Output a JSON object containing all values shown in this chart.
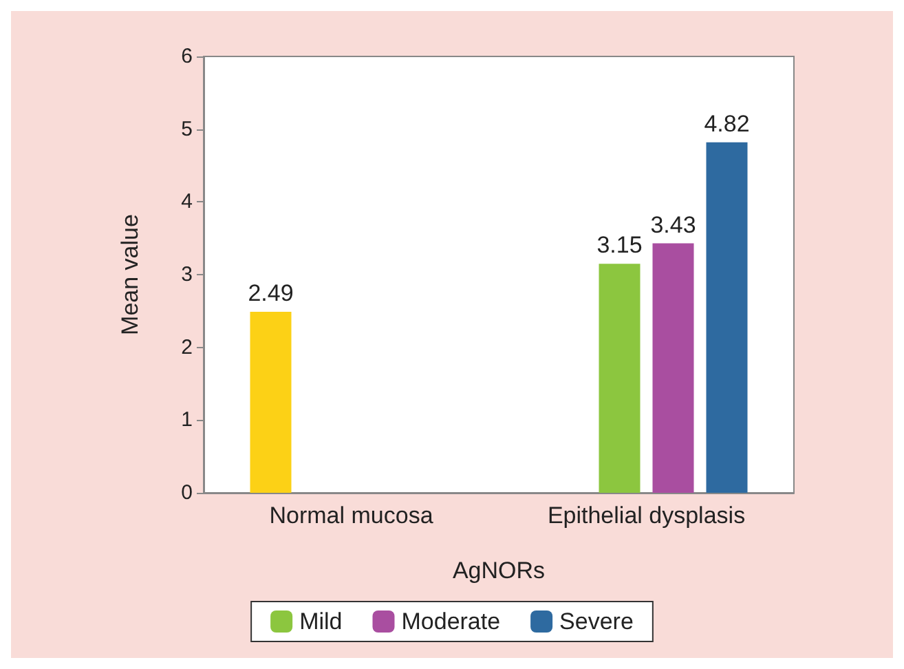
{
  "chart_data": {
    "type": "bar",
    "xlabel": "AgNORs",
    "ylabel": "Mean value",
    "categories": [
      "Normal mucosa",
      "Epithelial dysplasis"
    ],
    "series": [
      {
        "color": "#fcd116",
        "values": [
          2.49,
          null
        ]
      },
      {
        "name": "Mild",
        "color": "#8cc63f",
        "values": [
          null,
          3.15
        ]
      },
      {
        "name": "Moderate",
        "color": "#a94ea0",
        "values": [
          null,
          3.43
        ]
      },
      {
        "name": "Severe",
        "color": "#2e6aa0",
        "values": [
          null,
          4.82
        ]
      }
    ],
    "ylim": [
      0,
      6
    ],
    "yticks": [
      0,
      1,
      2,
      3,
      4,
      5,
      6
    ],
    "grid": false,
    "legend": "bottom",
    "data_labels": true
  }
}
